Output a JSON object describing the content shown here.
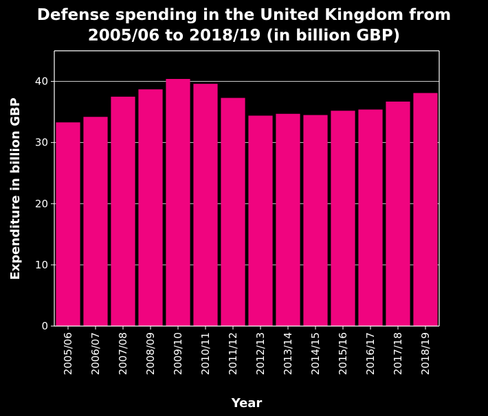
{
  "chart_data": {
    "type": "bar",
    "title": "Defense spending in the United Kingdom from 2005/06 to 2018/19 (in billion GBP)",
    "title_lines": [
      "Defense spending in the United Kingdom from",
      "2005/06 to 2018/19 (in billion GBP)"
    ],
    "xlabel": "Year",
    "ylabel": "Expenditure in billion GBP",
    "categories": [
      "2005/06",
      "2006/07",
      "2007/08",
      "2008/09",
      "2009/10",
      "2010/11",
      "2011/12",
      "2012/13",
      "2013/14",
      "2014/15",
      "2015/16",
      "2016/17",
      "2017/18",
      "2018/19"
    ],
    "values": [
      33.3,
      34.2,
      37.5,
      38.7,
      40.4,
      39.6,
      37.3,
      34.4,
      34.7,
      34.5,
      35.2,
      35.4,
      36.7,
      38.1
    ],
    "ylim": [
      0,
      45
    ],
    "yticks": [
      0,
      10,
      20,
      30,
      40
    ],
    "grid": true,
    "legend": "none",
    "colors": {
      "bar": "#f0047f",
      "background": "#000000",
      "text": "#ffffff",
      "grid": "#ffffff"
    }
  }
}
